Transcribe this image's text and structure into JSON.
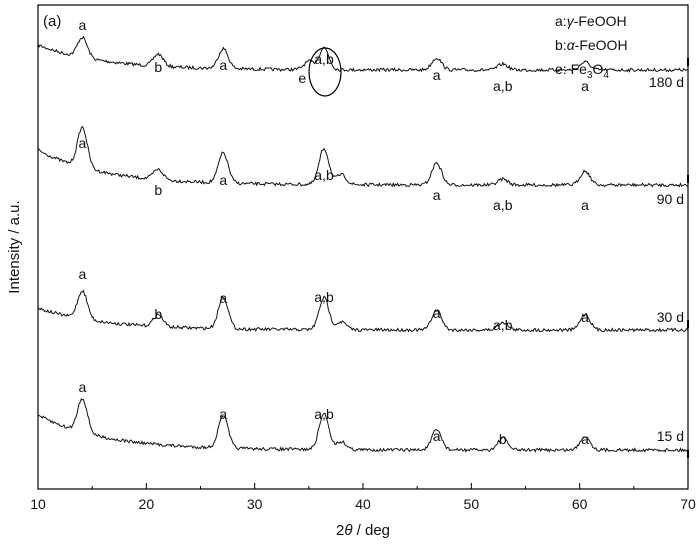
{
  "chart_data": {
    "type": "line",
    "panel_label": "(a)",
    "xlabel_pre": "2",
    "xlabel_theta": "θ",
    "xlabel_post": " / deg",
    "ylabel": "Intensity / a.u.",
    "xlim": [
      10,
      70
    ],
    "x_ticks": [
      "10",
      "20",
      "30",
      "40",
      "50",
      "60",
      "70"
    ],
    "legend": [
      {
        "prefix": "a:",
        "greek": "γ",
        "suffix": "-FeOOH"
      },
      {
        "prefix": "b:",
        "greek": "α",
        "suffix": "-FeOOH"
      },
      {
        "prefix": "e: Fe",
        "sub1": "3",
        "mid": "O",
        "sub2": "4"
      }
    ],
    "series": [
      {
        "name": "180 d",
        "peaks": [
          [
            14.1,
            10
          ],
          [
            21.1,
            6
          ],
          [
            27.1,
            10
          ],
          [
            35.0,
            4
          ],
          [
            36.4,
            11
          ],
          [
            46.8,
            6
          ],
          [
            52.9,
            3
          ],
          [
            60.5,
            4
          ]
        ],
        "annotations": [
          {
            "x": 14.1,
            "text": "a"
          },
          {
            "x": 21.1,
            "text": "b"
          },
          {
            "x": 27.1,
            "text": "a"
          },
          {
            "x": 34.4,
            "text": "e"
          },
          {
            "x": 36.4,
            "text": "a,b"
          },
          {
            "x": 46.8,
            "text": "a"
          },
          {
            "x": 52.9,
            "text": "a,b"
          },
          {
            "x": 60.5,
            "text": "a"
          }
        ]
      },
      {
        "name": "90 d",
        "peaks": [
          [
            14.1,
            20
          ],
          [
            21.1,
            5
          ],
          [
            27.1,
            15
          ],
          [
            36.4,
            18
          ],
          [
            38.0,
            5
          ],
          [
            46.8,
            11
          ],
          [
            52.9,
            3
          ],
          [
            60.5,
            7
          ]
        ],
        "annotations": [
          {
            "x": 14.1,
            "text": "a"
          },
          {
            "x": 21.1,
            "text": "b"
          },
          {
            "x": 27.1,
            "text": "a"
          },
          {
            "x": 36.4,
            "text": "a,b"
          },
          {
            "x": 46.8,
            "text": "a"
          },
          {
            "x": 52.9,
            "text": "a,b"
          },
          {
            "x": 60.5,
            "text": "a"
          }
        ]
      },
      {
        "name": "30 d",
        "peaks": [
          [
            14.1,
            14
          ],
          [
            21.1,
            6
          ],
          [
            27.1,
            16
          ],
          [
            36.4,
            16
          ],
          [
            38.0,
            4
          ],
          [
            46.8,
            10
          ],
          [
            52.9,
            4
          ],
          [
            60.5,
            8
          ]
        ],
        "annotations": [
          {
            "x": 14.1,
            "text": "a"
          },
          {
            "x": 21.1,
            "text": "b"
          },
          {
            "x": 27.1,
            "text": "a"
          },
          {
            "x": 36.4,
            "text": "a,b"
          },
          {
            "x": 46.8,
            "text": "a"
          },
          {
            "x": 52.9,
            "text": "a,b"
          },
          {
            "x": 60.5,
            "text": "a"
          }
        ]
      },
      {
        "name": "15 d",
        "peaks": [
          [
            14.1,
            17
          ],
          [
            27.1,
            16
          ],
          [
            36.4,
            18
          ],
          [
            38.0,
            4
          ],
          [
            46.8,
            10
          ],
          [
            52.9,
            6
          ],
          [
            60.5,
            7
          ]
        ],
        "annotations": [
          {
            "x": 14.1,
            "text": "a"
          },
          {
            "x": 27.1,
            "text": "a"
          },
          {
            "x": 36.4,
            "text": "a,b"
          },
          {
            "x": 46.8,
            "text": "a"
          },
          {
            "x": 52.9,
            "text": "b"
          },
          {
            "x": 60.5,
            "text": "a"
          }
        ]
      }
    ],
    "circled_peak": {
      "x": 36.4,
      "series": "180 d"
    },
    "grid": false
  }
}
